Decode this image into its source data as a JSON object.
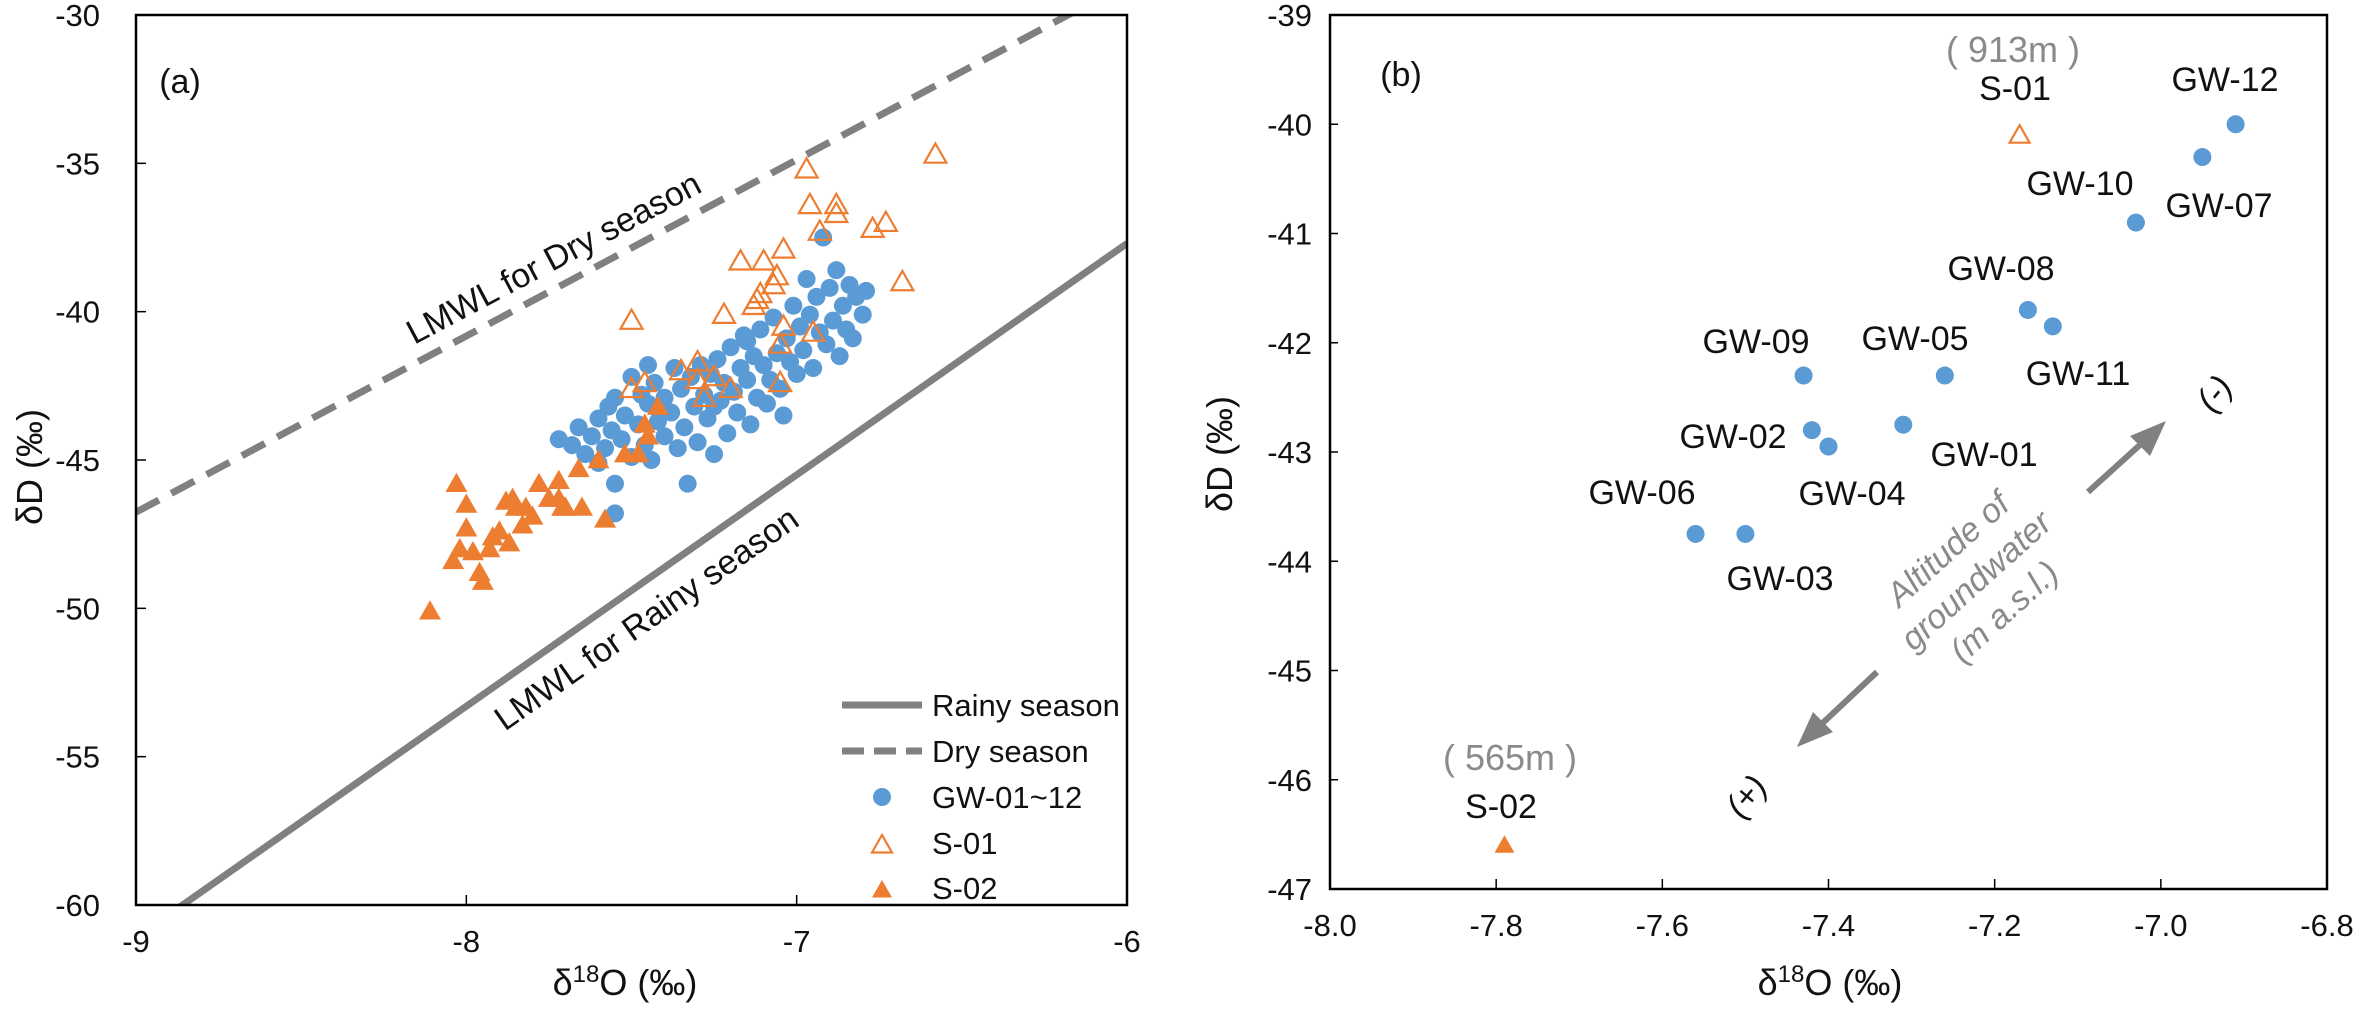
{
  "colors": {
    "gw": "#5B9BD5",
    "s01": "#ED7D31",
    "s02": "#ED7D31",
    "lmwl": "#808080",
    "annot": "#8a8a8a"
  },
  "chart_data": [
    {
      "type": "scatter",
      "panel_label": "(a)",
      "xlabel": "δ18O (‰)",
      "xlabel_base": "δ",
      "xlabel_sup": "18",
      "xlabel_rest": "O (‰)",
      "ylabel": "δD (‰)",
      "xlim": [
        -9,
        -6
      ],
      "ylim": [
        -60,
        -30
      ],
      "xticks": [
        "-9",
        "-8",
        "-7",
        "-6"
      ],
      "yticks": [
        "-30",
        "-35",
        "-40",
        "-45",
        "-50",
        "-55",
        "-60"
      ],
      "lines": [
        {
          "name": "Rainy season",
          "label": "LMWL for Rainy season",
          "slope": 7.8,
          "intercept": 9.1,
          "style": "solid"
        },
        {
          "name": "Dry season",
          "label": "LMWL for Dry season",
          "slope": 5.94,
          "intercept": 6.7,
          "style": "dashed"
        }
      ],
      "legend": {
        "position": "bottom-right",
        "entries": [
          "Rainy season",
          "Dry season",
          "GW-01~12",
          "S-01",
          "S-02"
        ]
      },
      "series": [
        {
          "name": "GW-01~12",
          "marker": "circle",
          "points": [
            [
              -7.72,
              -44.3
            ],
            [
              -7.68,
              -44.5
            ],
            [
              -7.66,
              -43.9
            ],
            [
              -7.64,
              -44.8
            ],
            [
              -7.62,
              -44.2
            ],
            [
              -7.6,
              -43.6
            ],
            [
              -7.6,
              -45.1
            ],
            [
              -7.58,
              -44.6
            ],
            [
              -7.57,
              -43.2
            ],
            [
              -7.56,
              -44.0
            ],
            [
              -7.55,
              -42.9
            ],
            [
              -7.55,
              -45.8
            ],
            [
              -7.53,
              -44.3
            ],
            [
              -7.52,
              -43.5
            ],
            [
              -7.5,
              -42.2
            ],
            [
              -7.5,
              -44.9
            ],
            [
              -7.48,
              -43.8
            ],
            [
              -7.47,
              -42.8
            ],
            [
              -7.46,
              -44.5
            ],
            [
              -7.45,
              -43.1
            ],
            [
              -7.44,
              -45.0
            ],
            [
              -7.43,
              -42.4
            ],
            [
              -7.42,
              -43.7
            ],
            [
              -7.4,
              -44.2
            ],
            [
              -7.4,
              -42.9
            ],
            [
              -7.38,
              -43.4
            ],
            [
              -7.37,
              -41.9
            ],
            [
              -7.36,
              -44.6
            ],
            [
              -7.35,
              -42.6
            ],
            [
              -7.34,
              -43.9
            ],
            [
              -7.33,
              -45.8
            ],
            [
              -7.32,
              -42.2
            ],
            [
              -7.31,
              -43.2
            ],
            [
              -7.3,
              -44.4
            ],
            [
              -7.29,
              -41.8
            ],
            [
              -7.28,
              -42.8
            ],
            [
              -7.27,
              -43.6
            ],
            [
              -7.26,
              -42.1
            ],
            [
              -7.25,
              -44.8
            ],
            [
              -7.24,
              -41.6
            ],
            [
              -7.23,
              -43.0
            ],
            [
              -7.22,
              -42.4
            ],
            [
              -7.21,
              -44.1
            ],
            [
              -7.2,
              -41.2
            ],
            [
              -7.19,
              -42.7
            ],
            [
              -7.18,
              -43.4
            ],
            [
              -7.17,
              -41.9
            ],
            [
              -7.16,
              -40.8
            ],
            [
              -7.15,
              -42.3
            ],
            [
              -7.14,
              -43.8
            ],
            [
              -7.13,
              -41.5
            ],
            [
              -7.12,
              -42.9
            ],
            [
              -7.11,
              -40.6
            ],
            [
              -7.1,
              -41.8
            ],
            [
              -7.09,
              -43.1
            ],
            [
              -7.08,
              -42.3
            ],
            [
              -7.07,
              -40.2
            ],
            [
              -7.06,
              -41.4
            ],
            [
              -7.05,
              -42.6
            ],
            [
              -7.04,
              -43.5
            ],
            [
              -7.03,
              -40.9
            ],
            [
              -7.02,
              -41.7
            ],
            [
              -7.01,
              -39.8
            ],
            [
              -7.0,
              -42.1
            ],
            [
              -6.99,
              -40.5
            ],
            [
              -6.98,
              -41.3
            ],
            [
              -6.97,
              -38.9
            ],
            [
              -6.96,
              -40.1
            ],
            [
              -6.95,
              -41.9
            ],
            [
              -6.94,
              -39.5
            ],
            [
              -6.93,
              -40.7
            ],
            [
              -6.92,
              -37.5
            ],
            [
              -6.91,
              -41.1
            ],
            [
              -6.9,
              -39.2
            ],
            [
              -6.89,
              -40.3
            ],
            [
              -6.88,
              -38.6
            ],
            [
              -6.87,
              -41.5
            ],
            [
              -6.86,
              -39.8
            ],
            [
              -6.85,
              -40.6
            ],
            [
              -6.84,
              -39.1
            ],
            [
              -6.83,
              -40.9
            ],
            [
              -6.82,
              -39.5
            ],
            [
              -6.8,
              -40.1
            ],
            [
              -6.79,
              -39.3
            ],
            [
              -7.55,
              -46.8
            ],
            [
              -7.25,
              -43.2
            ],
            [
              -7.15,
              -41.0
            ],
            [
              -7.45,
              -41.8
            ]
          ]
        },
        {
          "name": "S-01",
          "marker": "triangle-open",
          "points": [
            [
              -6.58,
              -34.7
            ],
            [
              -6.97,
              -35.2
            ],
            [
              -6.88,
              -36.4
            ],
            [
              -6.96,
              -36.4
            ],
            [
              -6.88,
              -36.7
            ],
            [
              -6.77,
              -37.2
            ],
            [
              -6.73,
              -37.0
            ],
            [
              -6.68,
              -39.0
            ],
            [
              -6.93,
              -37.3
            ],
            [
              -7.04,
              -37.9
            ],
            [
              -7.1,
              -38.3
            ],
            [
              -7.06,
              -38.8
            ],
            [
              -7.07,
              -39.1
            ],
            [
              -7.17,
              -38.3
            ],
            [
              -7.11,
              -39.4
            ],
            [
              -7.22,
              -40.1
            ],
            [
              -7.5,
              -40.3
            ],
            [
              -7.04,
              -40.5
            ],
            [
              -7.05,
              -41.1
            ],
            [
              -6.95,
              -40.7
            ],
            [
              -7.3,
              -41.7
            ],
            [
              -7.35,
              -42.0
            ],
            [
              -7.46,
              -42.4
            ],
            [
              -7.05,
              -42.4
            ],
            [
              -7.5,
              -42.6
            ],
            [
              -7.25,
              -42.2
            ],
            [
              -7.2,
              -42.6
            ],
            [
              -7.3,
              -42.3
            ],
            [
              -7.28,
              -42.9
            ],
            [
              -7.12,
              -39.6
            ],
            [
              -7.13,
              -39.8
            ]
          ]
        },
        {
          "name": "S-02",
          "marker": "triangle-filled",
          "points": [
            [
              -8.11,
              -50.1
            ],
            [
              -8.03,
              -45.8
            ],
            [
              -8.0,
              -46.5
            ],
            [
              -8.0,
              -47.3
            ],
            [
              -8.02,
              -48.0
            ],
            [
              -8.04,
              -48.4
            ],
            [
              -7.98,
              -48.1
            ],
            [
              -7.96,
              -48.8
            ],
            [
              -7.95,
              -49.1
            ],
            [
              -7.92,
              -47.6
            ],
            [
              -7.93,
              -48.0
            ],
            [
              -7.9,
              -47.4
            ],
            [
              -7.87,
              -47.8
            ],
            [
              -7.88,
              -46.4
            ],
            [
              -7.86,
              -46.3
            ],
            [
              -7.85,
              -46.6
            ],
            [
              -7.82,
              -46.6
            ],
            [
              -7.8,
              -46.9
            ],
            [
              -7.83,
              -47.2
            ],
            [
              -7.78,
              -45.8
            ],
            [
              -7.75,
              -46.3
            ],
            [
              -7.72,
              -46.3
            ],
            [
              -7.71,
              -46.6
            ],
            [
              -7.72,
              -45.7
            ],
            [
              -7.7,
              -46.6
            ],
            [
              -7.66,
              -45.3
            ],
            [
              -7.65,
              -46.6
            ],
            [
              -7.58,
              -47.0
            ],
            [
              -7.6,
              -45.0
            ],
            [
              -7.52,
              -44.8
            ],
            [
              -7.48,
              -44.8
            ],
            [
              -7.46,
              -43.8
            ],
            [
              -7.45,
              -44.2
            ],
            [
              -7.42,
              -43.2
            ]
          ]
        }
      ]
    },
    {
      "type": "scatter",
      "panel_label": "(b)",
      "xlabel": "δ18O (‰)",
      "xlabel_base": "δ",
      "xlabel_sup": "18",
      "xlabel_rest": "O (‰)",
      "ylabel": "δD (‰)",
      "xlim": [
        -8.0,
        -6.8
      ],
      "ylim": [
        -47,
        -39
      ],
      "xticks": [
        "-8.0",
        "-7.8",
        "-7.6",
        "-7.4",
        "-7.2",
        "-7.0",
        "-6.8"
      ],
      "yticks": [
        "-39",
        "-40",
        "-41",
        "-42",
        "-43",
        "-44",
        "-45",
        "-46",
        "-47"
      ],
      "points": [
        {
          "label": "GW-12",
          "x": -6.91,
          "y": -40.0,
          "marker": "circle"
        },
        {
          "label": "GW-07",
          "x": -6.95,
          "y": -40.3,
          "marker": "circle"
        },
        {
          "label": "GW-10",
          "x": -7.03,
          "y": -40.9,
          "marker": "circle"
        },
        {
          "label": "GW-08",
          "x": -7.16,
          "y": -41.7,
          "marker": "circle"
        },
        {
          "label": "GW-11",
          "x": -7.13,
          "y": -41.85,
          "marker": "circle"
        },
        {
          "label": "GW-09",
          "x": -7.43,
          "y": -42.3,
          "marker": "circle"
        },
        {
          "label": "GW-05",
          "x": -7.26,
          "y": -42.3,
          "marker": "circle"
        },
        {
          "label": "GW-02",
          "x": -7.42,
          "y": -42.8,
          "marker": "circle"
        },
        {
          "label": "GW-04",
          "x": -7.4,
          "y": -42.95,
          "marker": "circle"
        },
        {
          "label": "GW-01",
          "x": -7.31,
          "y": -42.75,
          "marker": "circle"
        },
        {
          "label": "GW-06",
          "x": -7.56,
          "y": -43.75,
          "marker": "circle"
        },
        {
          "label": "GW-03",
          "x": -7.5,
          "y": -43.75,
          "marker": "circle"
        },
        {
          "label": "S-01",
          "x": -7.17,
          "y": -40.1,
          "marker": "triangle-open"
        },
        {
          "label": "S-02",
          "x": -7.79,
          "y": -46.6,
          "marker": "triangle-filled"
        }
      ],
      "annotations": {
        "s01_altitude": "( 913m )",
        "s02_altitude": "( 565m )",
        "arrow_text_1": "Altitude of",
        "arrow_text_2": "groundwater",
        "arrow_text_3": "(m a.s.l.)",
        "minus": "(-)",
        "plus": "(+)"
      }
    }
  ]
}
